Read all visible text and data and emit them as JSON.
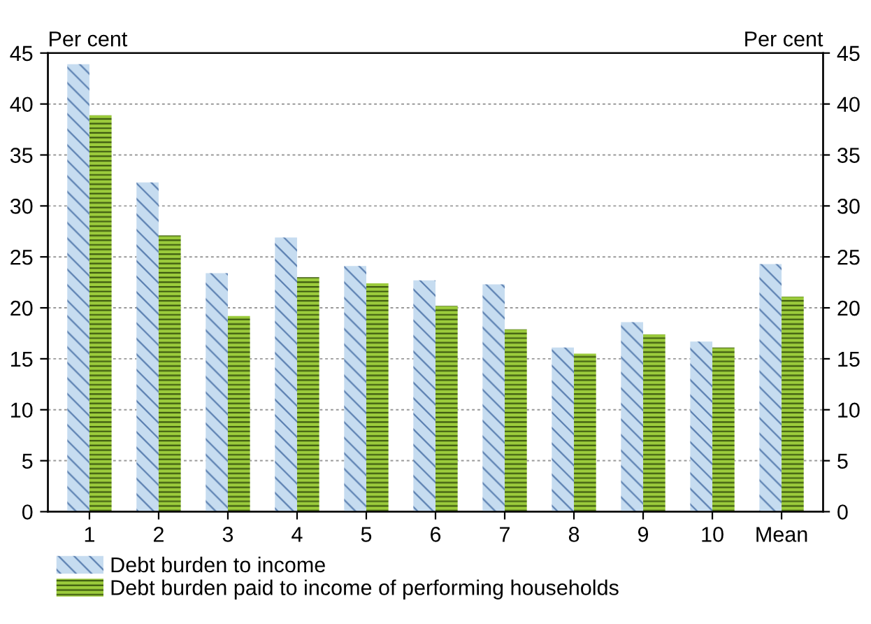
{
  "chart_data": {
    "type": "bar",
    "ylabel": "Per cent",
    "y2label": "Per cent",
    "categories": [
      "1",
      "2",
      "3",
      "4",
      "5",
      "6",
      "7",
      "8",
      "9",
      "10",
      "Mean"
    ],
    "series": [
      {
        "name": "Debt burden to income",
        "color": "#c6dcf0",
        "values": [
          43.9,
          32.3,
          23.4,
          26.9,
          24.1,
          22.7,
          22.3,
          16.1,
          18.6,
          16.7,
          24.3
        ]
      },
      {
        "name": "Debt burden paid to income of performing households",
        "color": "#9ccc3c",
        "values": [
          38.9,
          27.1,
          19.2,
          23.0,
          22.4,
          20.2,
          17.9,
          15.5,
          17.4,
          16.1,
          21.1
        ]
      }
    ],
    "ylim": [
      0,
      45
    ],
    "yticks": [
      0,
      5,
      10,
      15,
      20,
      25,
      30,
      35,
      40,
      45
    ],
    "y2lim": [
      0,
      45
    ],
    "y2ticks": [
      0,
      5,
      10,
      15,
      20,
      25,
      30,
      35,
      40,
      45
    ],
    "grid": "y",
    "legend": "bottom"
  }
}
